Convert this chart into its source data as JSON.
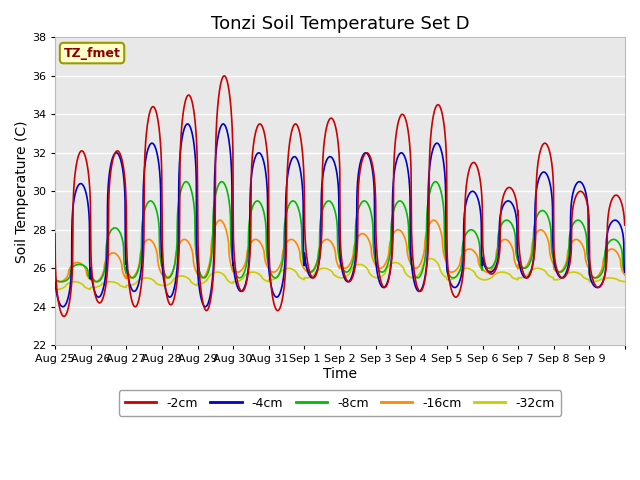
{
  "title": "Tonzi Soil Temperature Set D",
  "xlabel": "Time",
  "ylabel": "Soil Temperature (C)",
  "ylim": [
    22,
    38
  ],
  "n_days": 16,
  "x_tick_labels": [
    "Aug 25",
    "Aug 26",
    "Aug 27",
    "Aug 28",
    "Aug 29",
    "Aug 30",
    "Aug 31",
    "Sep 1",
    "Sep 2",
    "Sep 3",
    "Sep 4",
    "Sep 5",
    "Sep 6",
    "Sep 7",
    "Sep 8",
    "Sep 9"
  ],
  "series_colors": {
    "-2cm": "#cc0000",
    "-4cm": "#0000cc",
    "-8cm": "#00bb00",
    "-16cm": "#ff8800",
    "-32cm": "#cccc00"
  },
  "legend_label": "TZ_fmet",
  "legend_box_facecolor": "#ffffcc",
  "legend_box_edgecolor": "#999900",
  "background_color": "#e8e8e8",
  "grid_color": "#ffffff",
  "title_fontsize": 13,
  "axis_label_fontsize": 10,
  "tick_fontsize": 8
}
